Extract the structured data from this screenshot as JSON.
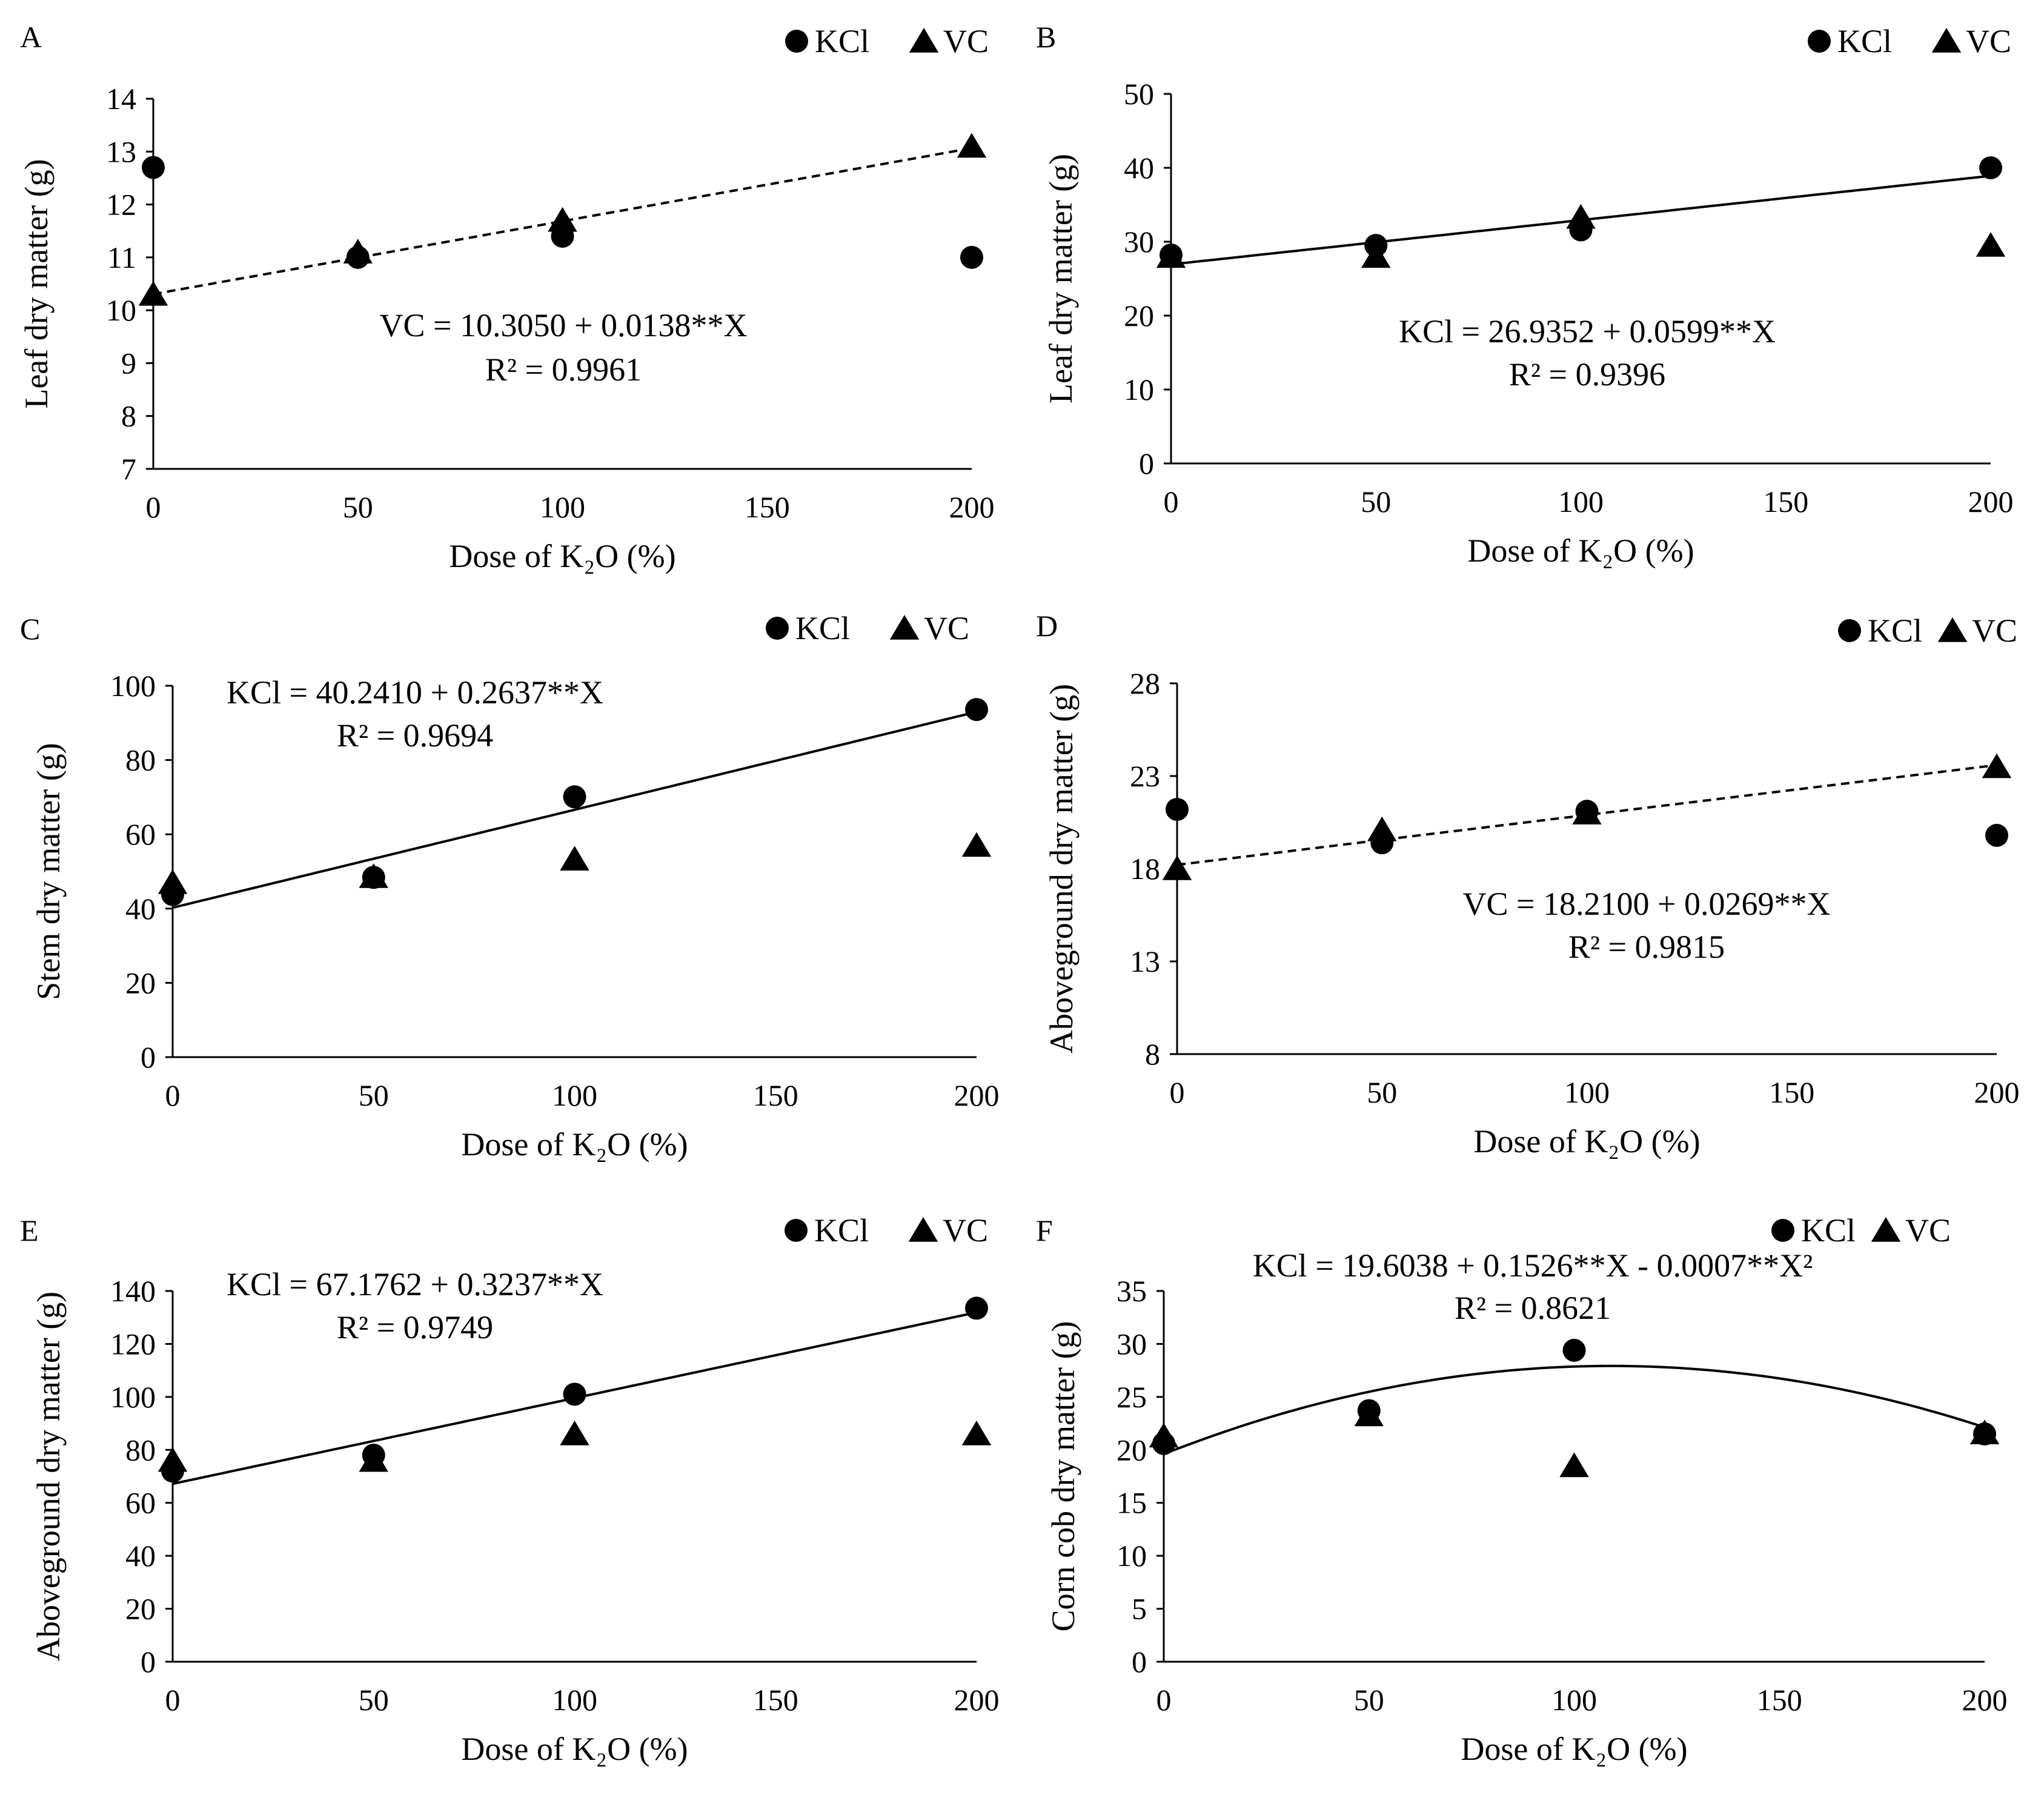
{
  "chart_data": [
    {
      "panel": "A",
      "type": "scatter",
      "xlabel": "Dose of K₂O (%)",
      "ylabel": "Leaf dry matter (g)",
      "xlim": [
        0,
        200
      ],
      "ylim": [
        7,
        14
      ],
      "xticks": [
        0,
        50,
        100,
        150,
        200
      ],
      "yticks": [
        7,
        8,
        9,
        10,
        11,
        12,
        13,
        14
      ],
      "legend": [
        "KCl",
        "VC"
      ],
      "series": [
        {
          "name": "KCl",
          "marker": "circle",
          "x": [
            0,
            50,
            100,
            200
          ],
          "y": [
            12.7,
            11.0,
            11.4,
            11.0
          ]
        },
        {
          "name": "VC",
          "marker": "triangle",
          "x": [
            0,
            50,
            100,
            200
          ],
          "y": [
            10.3,
            11.1,
            11.7,
            13.1
          ]
        }
      ],
      "fit": {
        "series": "VC",
        "style": "dashed",
        "coeffs": [
          10.305,
          0.0138
        ],
        "xrange": [
          0,
          200
        ]
      },
      "equation": "VC = 10.3050  + 0.0138**X",
      "r2": "R² = 0.9961"
    },
    {
      "panel": "B",
      "type": "scatter",
      "xlabel": "Dose of K₂O (%)",
      "ylabel": "Leaf dry matter (g)",
      "xlim": [
        0,
        200
      ],
      "ylim": [
        0,
        50
      ],
      "xticks": [
        0,
        50,
        100,
        150,
        200
      ],
      "yticks": [
        0,
        10,
        20,
        30,
        40,
        50
      ],
      "legend": [
        "KCl",
        "VC"
      ],
      "series": [
        {
          "name": "KCl",
          "marker": "circle",
          "x": [
            0,
            50,
            100,
            200
          ],
          "y": [
            28.2,
            29.5,
            31.6,
            40.0
          ]
        },
        {
          "name": "VC",
          "marker": "triangle",
          "x": [
            0,
            50,
            100,
            200
          ],
          "y": [
            28.0,
            28.0,
            33.3,
            29.5
          ]
        }
      ],
      "fit": {
        "series": "KCl",
        "style": "solid",
        "coeffs": [
          26.9352,
          0.0599
        ],
        "xrange": [
          0,
          200
        ]
      },
      "equation": "KCl = 26.9352  + 0.0599**X",
      "r2": "R² = 0.9396"
    },
    {
      "panel": "C",
      "type": "scatter",
      "xlabel": "Dose of K₂O (%)",
      "ylabel": "Stem dry matter (g)",
      "xlim": [
        0,
        200
      ],
      "ylim": [
        0,
        100
      ],
      "xticks": [
        0,
        50,
        100,
        150,
        200
      ],
      "yticks": [
        0,
        20,
        40,
        60,
        80,
        100
      ],
      "legend": [
        "KCl",
        "VC"
      ],
      "series": [
        {
          "name": "KCl",
          "marker": "circle",
          "x": [
            0,
            50,
            100,
            200
          ],
          "y": [
            43.8,
            48.4,
            70.1,
            93.6
          ]
        },
        {
          "name": "VC",
          "marker": "triangle",
          "x": [
            0,
            50,
            100,
            200
          ],
          "y": [
            47.0,
            48.6,
            53.3,
            57.0
          ]
        }
      ],
      "fit": {
        "series": "KCl",
        "style": "solid",
        "coeffs": [
          40.241,
          0.2637
        ],
        "xrange": [
          0,
          200
        ]
      },
      "equation": "KCl = 40.2410  + 0.2637**X",
      "r2": "R² = 0.9694"
    },
    {
      "panel": "D",
      "type": "scatter",
      "xlabel": "Dose of K₂O (%)",
      "ylabel": "Aboveground  dry matter (g)",
      "xlim": [
        0,
        200
      ],
      "ylim": [
        8,
        28
      ],
      "xticks": [
        0,
        50,
        100,
        150,
        200
      ],
      "yticks": [
        8,
        13,
        18,
        23,
        28
      ],
      "legend": [
        "KCl",
        "VC"
      ],
      "series": [
        {
          "name": "KCl",
          "marker": "circle",
          "x": [
            0,
            50,
            100,
            200
          ],
          "y": [
            21.2,
            19.4,
            21.1,
            19.8
          ]
        },
        {
          "name": "VC",
          "marker": "triangle",
          "x": [
            0,
            50,
            100,
            200
          ],
          "y": [
            18.0,
            20.1,
            21.0,
            23.5
          ]
        }
      ],
      "fit": {
        "series": "VC",
        "style": "dashed",
        "coeffs": [
          18.21,
          0.0269
        ],
        "xrange": [
          0,
          200
        ]
      },
      "equation": "VC = 18.2100  + 0.0269**X",
      "r2": "R² = 0.9815"
    },
    {
      "panel": "E",
      "type": "scatter",
      "xlabel": "Dose of K₂O (%)",
      "ylabel": "Aboveground  dry matter (g)",
      "xlim": [
        0,
        200
      ],
      "ylim": [
        0,
        140
      ],
      "xticks": [
        0,
        50,
        100,
        150,
        200
      ],
      "yticks": [
        0,
        20,
        40,
        60,
        80,
        100,
        120,
        140
      ],
      "legend": [
        "KCl",
        "VC"
      ],
      "series": [
        {
          "name": "KCl",
          "marker": "circle",
          "x": [
            0,
            50,
            100,
            200
          ],
          "y": [
            72.0,
            78.0,
            101.0,
            133.5
          ]
        },
        {
          "name": "VC",
          "marker": "triangle",
          "x": [
            0,
            50,
            100,
            200
          ],
          "y": [
            76.0,
            76.0,
            86.0,
            86.0
          ]
        }
      ],
      "fit": {
        "series": "KCl",
        "style": "solid",
        "coeffs": [
          67.1762,
          0.3237
        ],
        "xrange": [
          0,
          200
        ]
      },
      "equation": "KCl = 67.1762  + 0.3237**X",
      "r2": "R² = 0.9749"
    },
    {
      "panel": "F",
      "type": "scatter",
      "xlabel": "Dose of K₂O (%)",
      "ylabel": "Corn cob dry matter (g)",
      "xlim": [
        0,
        200
      ],
      "ylim": [
        0,
        35
      ],
      "xticks": [
        0,
        50,
        100,
        150,
        200
      ],
      "yticks": [
        0,
        5,
        10,
        15,
        20,
        25,
        30,
        35
      ],
      "legend": [
        "KCl",
        "VC"
      ],
      "series": [
        {
          "name": "KCl",
          "marker": "circle",
          "x": [
            0,
            50,
            100,
            200
          ],
          "y": [
            20.6,
            23.7,
            29.4,
            21.5
          ]
        },
        {
          "name": "VC",
          "marker": "triangle",
          "x": [
            0,
            50,
            100,
            200
          ],
          "y": [
            21.3,
            23.3,
            18.5,
            21.6
          ]
        }
      ],
      "fit": {
        "series": "KCl",
        "style": "solid",
        "coeffs": [
          19.6038,
          0.1526,
          -0.0007
        ],
        "xrange": [
          0,
          200
        ]
      },
      "equation": "KCl = 19.6038  + 0.1526**X - 0.0007**X²",
      "r2": "R² = 0.8621"
    }
  ]
}
